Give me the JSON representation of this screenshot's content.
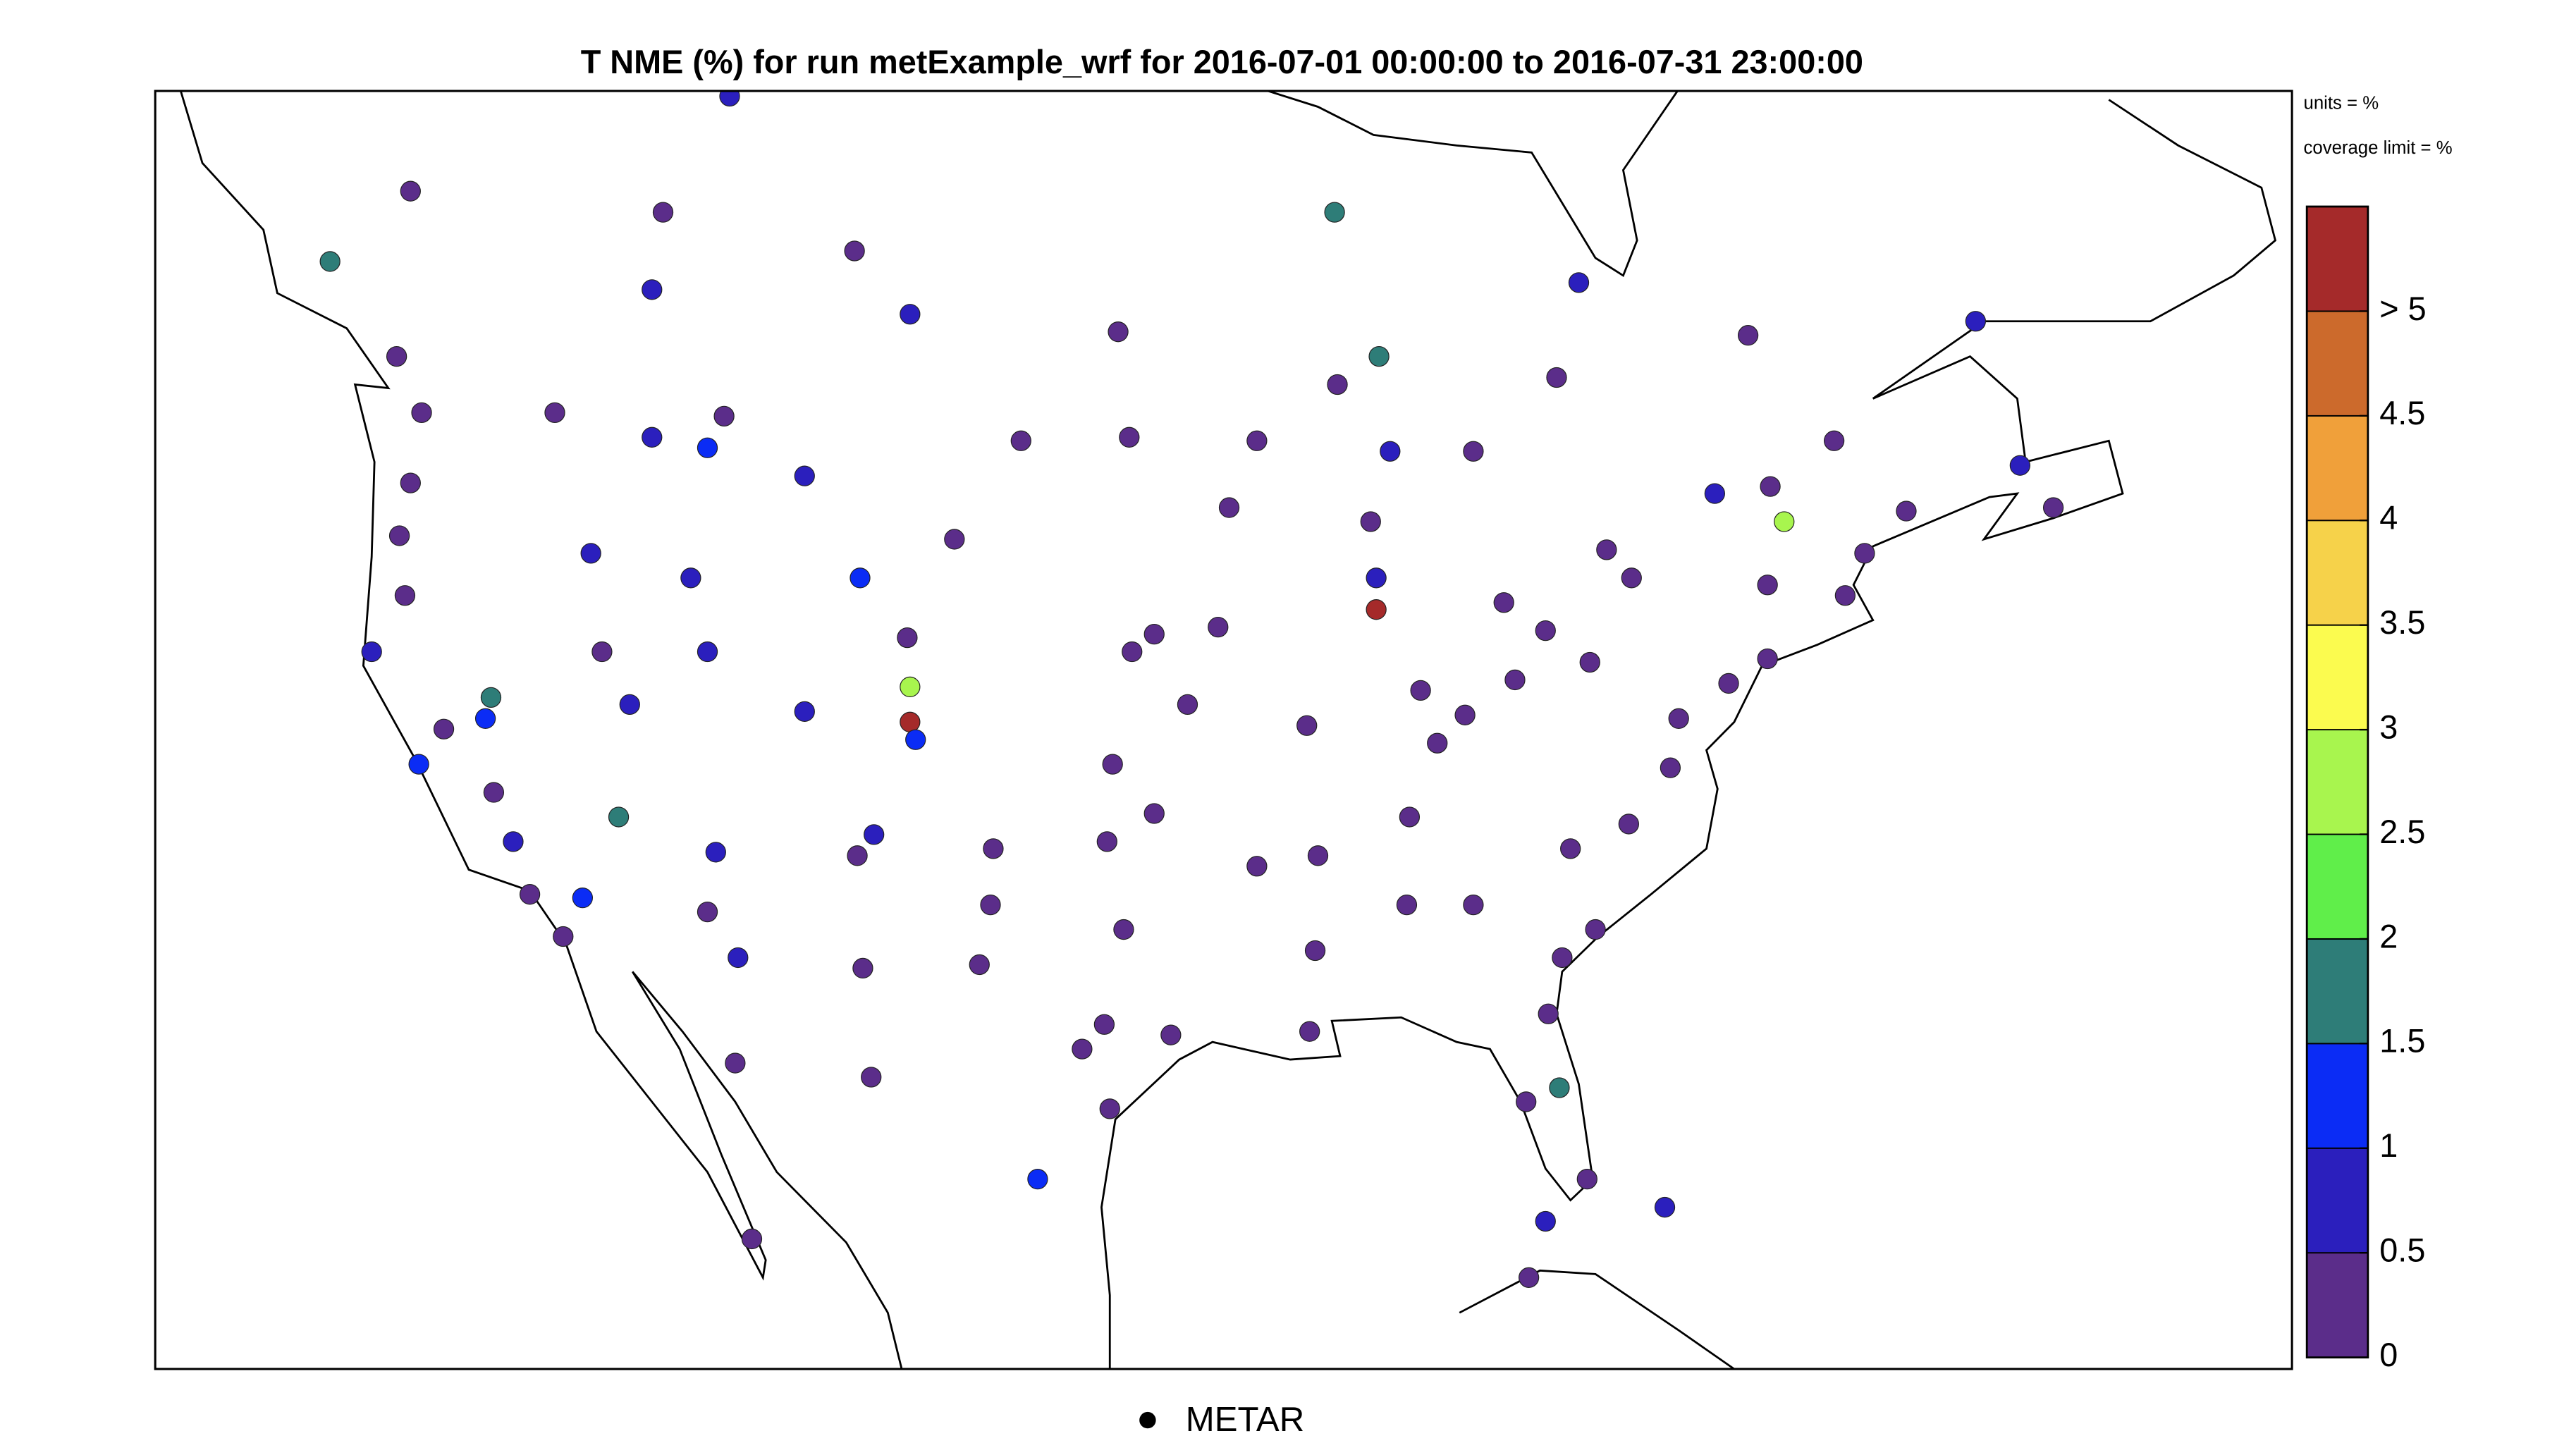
{
  "chart_data": {
    "type": "station-map",
    "title": "T NME (%) for run metExample_wrf for 2016-07-01 00:00:00 to 2016-07-31 23:00:00",
    "annotations": [
      "units = %",
      "coverage limit = %"
    ],
    "legend": "METAR",
    "xlim": [
      -131.9,
      -54.9
    ],
    "ylim": [
      20.4,
      56.75
    ],
    "colorbar": {
      "colors": [
        "#5b2d8a",
        "#2b1fbd",
        "#0b2cf5",
        "#2e7d78",
        "#60ee4a",
        "#a8f54e",
        "#fbfb4f",
        "#f6d24a",
        "#f0a03a",
        "#cc6a2c",
        "#a52a2a"
      ],
      "clim": [
        0,
        5.5
      ],
      "ticks": [
        0,
        0.5,
        1,
        1.5,
        2,
        2.5,
        3,
        3.5,
        4,
        4.5,
        {
          "value": 5,
          "label": "> 5"
        }
      ]
    },
    "points": {
      "lon": [
        -122.3,
        -122.7,
        -123.1,
        -122.9,
        -124.1,
        -122.4,
        -121.5,
        -119.7,
        -118.4,
        -117.2,
        -116.5,
        -115.2,
        -119.8,
        -120.0,
        -119.0,
        -116.2,
        -117.5,
        -114.0,
        -112.0,
        -108.5,
        -111.4,
        -112.0,
        -115.8,
        -114.8,
        -112.6,
        -104.8,
        -106.5,
        -104.7,
        -104.7,
        -104.5,
        -108.5,
        -106.6,
        -106.0,
        -112.0,
        -110.9,
        -111.7,
        -106.4,
        -103.1,
        -100.7,
        -96.8,
        -95.9,
        -96.7,
        -97.4,
        -94.7,
        -95.9,
        -97.6,
        -97.0,
        -97.7,
        -95.3,
        -98.5,
        -97.5,
        -101.7,
        -101.8,
        -102.2,
        -93.2,
        -93.6,
        -87.9,
        -87.9,
        -83.3,
        -86.3,
        -90.4,
        -90.0,
        -86.7,
        -84.4,
        -86.8,
        -90.3,
        -90.1,
        -92.2,
        -82.9,
        -81.8,
        -80.2,
        -84.7,
        -85.7,
        -80.9,
        -78.8,
        -77.3,
        -77.0,
        -75.2,
        -73.8,
        -71.0,
        -73.8,
        -73.2,
        -70.3,
        -68.8,
        -81.7,
        -82.5,
        -81.3,
        -80.3,
        -81.8,
        -81.2,
        -80.0,
        -78.7,
        -88.1,
        -92.2,
        -87.4,
        -84.4,
        -123.2,
        -114.0,
        -113.6,
        -106.7,
        -104.7,
        -97.2,
        -89.3,
        -79.6,
        -75.7,
        -73.7,
        -71.4,
        -63.5,
        -64.7,
        -111.2,
        -122.7,
        -81.4,
        -80.6,
        -74.5,
        -66.3,
        -100.1,
        -106.1,
        -111.0,
        -110.4,
        -82.4,
        -77.5,
        -125.6,
        -89.4,
        -87.8
      ],
      "lat": [
        47.6,
        45.6,
        44.1,
        42.4,
        40.8,
        37.6,
        38.6,
        36.8,
        33.9,
        32.7,
        33.8,
        36.1,
        39.5,
        38.9,
        35.4,
        43.6,
        47.6,
        46.9,
        46.6,
        45.8,
        47.5,
        40.8,
        40.8,
        39.3,
        42.9,
        41.2,
        42.9,
        39.8,
        38.8,
        38.3,
        39.1,
        35.0,
        35.6,
        33.4,
        32.1,
        35.1,
        31.8,
        44.0,
        46.8,
        46.9,
        41.3,
        40.8,
        37.6,
        39.3,
        36.2,
        35.4,
        32.9,
        30.2,
        29.9,
        29.5,
        27.8,
        35.2,
        33.6,
        31.9,
        44.9,
        41.5,
        42.0,
        42.9,
        42.2,
        39.7,
        38.7,
        35.0,
        36.1,
        33.6,
        33.6,
        30.0,
        32.3,
        34.7,
        40.0,
        41.4,
        40.5,
        39.0,
        38.2,
        35.2,
        35.9,
        37.5,
        38.9,
        39.9,
        40.6,
        42.4,
        42.7,
        44.5,
        43.6,
        44.8,
        30.5,
        28.0,
        28.4,
        25.8,
        24.6,
        32.1,
        32.9,
        42.9,
        44.5,
        46.8,
        46.5,
        46.5,
        49.2,
        51.1,
        53.3,
        52.2,
        50.4,
        49.9,
        48.4,
        43.7,
        45.3,
        45.5,
        46.8,
        44.9,
        46.1,
        56.6,
        53.9,
        48.6,
        51.3,
        49.8,
        50.2,
        25.8,
        28.7,
        29.1,
        24.1,
        23.0,
        25.0,
        51.9,
        53.3,
        49.2
      ],
      "values": [
        0.3,
        0.3,
        0.3,
        0.3,
        0.8,
        1.2,
        0.3,
        0.3,
        0.3,
        0.3,
        1.2,
        1.7,
        1.7,
        1.2,
        0.8,
        0.8,
        0.3,
        0.8,
        1.2,
        0.8,
        0.3,
        0.8,
        0.3,
        0.8,
        0.8,
        0.3,
        1.2,
        2.75,
        6,
        1.2,
        0.8,
        0.3,
        0.8,
        0.3,
        0.8,
        0.8,
        0.3,
        0.3,
        0.3,
        0.3,
        0.3,
        0.3,
        0.3,
        0.3,
        0.3,
        0.3,
        0.3,
        0.3,
        0.3,
        0.3,
        0.3,
        0.3,
        0.3,
        0.3,
        0.3,
        0.3,
        6,
        0.8,
        0.3,
        0.3,
        0.3,
        0.3,
        0.3,
        0.3,
        0.3,
        0.3,
        0.3,
        0.3,
        0.3,
        0.3,
        0.3,
        0.3,
        0.3,
        0.3,
        0.3,
        0.3,
        0.3,
        0.3,
        0.3,
        0.3,
        0.3,
        2.75,
        0.3,
        0.3,
        0.3,
        0.3,
        1.7,
        0.3,
        0.8,
        0.3,
        0.3,
        0.3,
        0.3,
        0.3,
        0.8,
        0.3,
        0.3,
        0.8,
        0.3,
        0.3,
        0.8,
        0.3,
        0.3,
        0.3,
        0.8,
        0.3,
        0.3,
        0.3,
        0.8,
        0.8,
        0.3,
        0.3,
        0.8,
        0.3,
        0.8,
        1.2,
        0.3,
        0.3,
        0.3,
        0.3,
        0.8,
        1.7,
        1.7,
        1.7
      ]
    }
  }
}
